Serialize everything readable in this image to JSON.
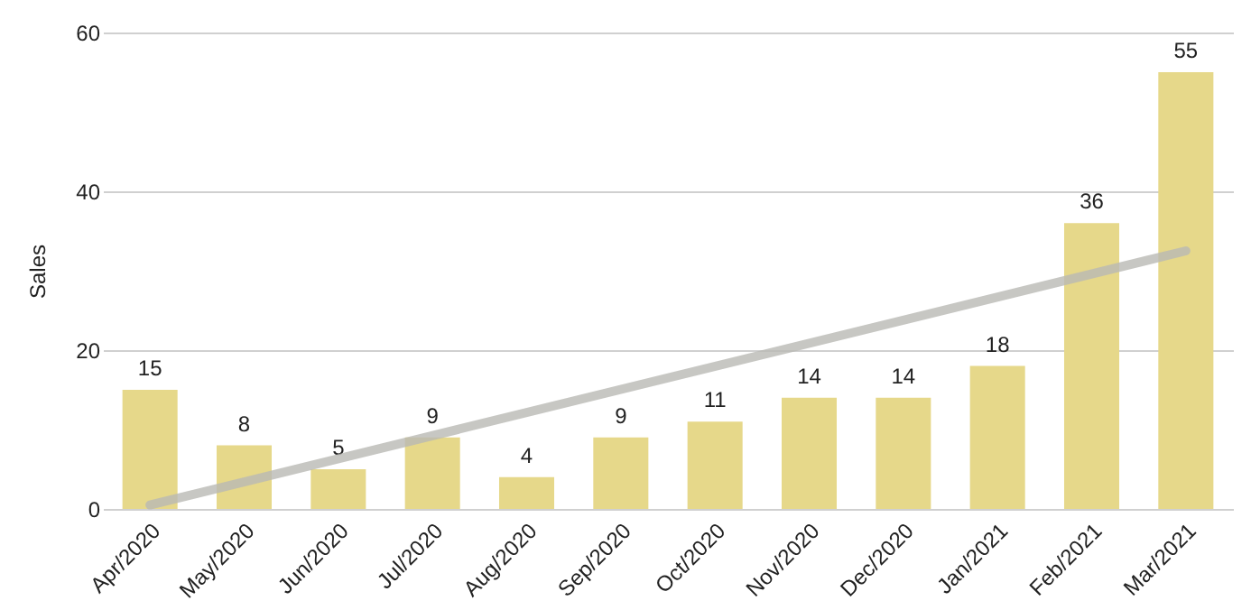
{
  "chart_data": {
    "type": "bar",
    "ylabel": "Sales",
    "categories": [
      "Apr/2020",
      "May/2020",
      "Jun/2020",
      "Jul/2020",
      "Aug/2020",
      "Sep/2020",
      "Oct/2020",
      "Nov/2020",
      "Dec/2020",
      "Jan/2021",
      "Feb/2021",
      "Mar/2021"
    ],
    "series": [
      {
        "color": "#e6d88a",
        "values": [
          15,
          8,
          5,
          9,
          4,
          9,
          11,
          14,
          14,
          18,
          36,
          55
        ],
        "value_labels": [
          "15",
          "8",
          "5",
          "9",
          "4",
          "9",
          "11",
          "14",
          "14",
          "18",
          "36",
          "55"
        ]
      },
      {
        "type": "line",
        "color": "#b9b9b4",
        "x": [
          "Apr/2020",
          "Mar/2021"
        ],
        "values": [
          0.5,
          32.5
        ]
      }
    ],
    "ylim": [
      0,
      60
    ],
    "yticks": [
      0,
      20,
      40,
      60
    ],
    "grid": "y"
  }
}
